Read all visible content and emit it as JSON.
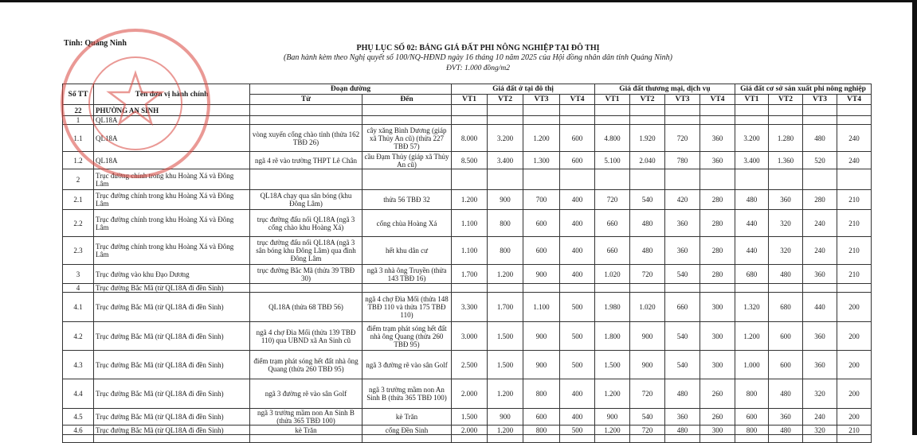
{
  "header": {
    "province": "Tỉnh: Quảng Ninh",
    "title": "PHỤ LỤC SỐ 02: BẢNG GIÁ ĐẤT PHI NÔNG NGHIỆP TẠI ĐÔ THỊ",
    "subtitle": "(Ban hành kèm theo Nghị quyết số 100/NQ-HĐND ngày 16 tháng 10 năm 2025 của Hội đồng nhân dân tỉnh Quảng Ninh)",
    "unit": "ĐVT: 1.000 đồng/m2"
  },
  "seal": {
    "text": "NHÂN DÂN TỈNH QUẢNG NINH",
    "color": "#d9463f"
  },
  "columns": {
    "stt": "Số TT",
    "name": "Tên đơn vị hành chính",
    "road": "Đoạn đường",
    "from": "Từ",
    "to": "Đến",
    "residential": "Giá đất ở tại đô thị",
    "commercial": "Giá đất thương mại, dịch vụ",
    "production": "Giá đất cơ sở sản xuất phi nông nghiệp",
    "vt": [
      "VT1",
      "VT2",
      "VT3",
      "VT4"
    ]
  },
  "rows": [
    {
      "stt": "22",
      "name": "PHƯỜNG AN SINH",
      "from": "",
      "to": "",
      "o": [
        "",
        "",
        "",
        ""
      ],
      "tm": [
        "",
        "",
        "",
        ""
      ],
      "sx": [
        "",
        "",
        "",
        ""
      ]
    },
    {
      "stt": "1",
      "name": "QL18A",
      "from": "",
      "to": "",
      "o": [
        "",
        "",
        "",
        ""
      ],
      "tm": [
        "",
        "",
        "",
        ""
      ],
      "sx": [
        "",
        "",
        "",
        ""
      ]
    },
    {
      "stt": "1.1",
      "name": "QL18A",
      "from": "vòng xuyến cổng chào tỉnh (thửa 162 TBĐ 26)",
      "to": "cây xăng Bình Dương (giáp xã Thủy An cũ) (thửa 227 TBĐ 57)",
      "o": [
        "8.000",
        "3.200",
        "1.200",
        "600"
      ],
      "tm": [
        "4.800",
        "1.920",
        "720",
        "360"
      ],
      "sx": [
        "3.200",
        "1.280",
        "480",
        "240"
      ]
    },
    {
      "stt": "1.2",
      "name": "QL18A",
      "from": "ngã 4 rẽ vào trường THPT Lê Chân",
      "to": "cầu Đạm Thủy (giáp xã Thủy An cũ)",
      "o": [
        "8.500",
        "3.400",
        "1.300",
        "600"
      ],
      "tm": [
        "5.100",
        "2.040",
        "780",
        "360"
      ],
      "sx": [
        "3.400",
        "1.360",
        "520",
        "240"
      ]
    },
    {
      "stt": "2",
      "name": "Trục đường chính trong khu Hoàng Xá và Đông Lâm",
      "from": "",
      "to": "",
      "o": [
        "",
        "",
        "",
        ""
      ],
      "tm": [
        "",
        "",
        "",
        ""
      ],
      "sx": [
        "",
        "",
        "",
        ""
      ]
    },
    {
      "stt": "2.1",
      "name": "Trục đường chính trong khu Hoàng Xá và Đông Lâm",
      "from": "QL18A chạy qua sân bóng (khu Đông Lâm)",
      "to": "thửa 56 TBĐ 32",
      "o": [
        "1.200",
        "900",
        "700",
        "400"
      ],
      "tm": [
        "720",
        "540",
        "420",
        "280"
      ],
      "sx": [
        "480",
        "360",
        "280",
        "210"
      ]
    },
    {
      "stt": "2.2",
      "name": "Trục đường chính trong khu Hoàng Xá và Đông Lâm",
      "from": "trục đường đấu nối QL18A (ngã 3 cổng chào khu Hoàng Xá)",
      "to": "cổng chùa Hoàng Xá",
      "o": [
        "1.100",
        "800",
        "600",
        "400"
      ],
      "tm": [
        "660",
        "480",
        "360",
        "280"
      ],
      "sx": [
        "440",
        "320",
        "240",
        "210"
      ]
    },
    {
      "stt": "2.3",
      "name": "Trục đường chính trong khu Hoàng Xá và Đông Lâm",
      "from": "trục đường đấu nối QL18A (ngã 3 sân bóng khu Đông Lâm) qua đình Đông Lâm",
      "to": "hết khu dân cư",
      "o": [
        "1.100",
        "800",
        "600",
        "400"
      ],
      "tm": [
        "660",
        "480",
        "360",
        "280"
      ],
      "sx": [
        "440",
        "320",
        "240",
        "210"
      ]
    },
    {
      "stt": "3",
      "name": "Trục đường vào khu Đạo Dương",
      "from": "trục đường Bắc Mã (thửa 39 TBĐ 30)",
      "to": "ngã 3 nhà ông Truyền (thửa 143 TBĐ 16)",
      "o": [
        "1.700",
        "1.200",
        "900",
        "400"
      ],
      "tm": [
        "1.020",
        "720",
        "540",
        "280"
      ],
      "sx": [
        "680",
        "480",
        "360",
        "210"
      ]
    },
    {
      "stt": "4",
      "name": "Trục đường Bắc Mã (từ QL18A đi đền Sinh)",
      "from": "",
      "to": "",
      "o": [
        "",
        "",
        "",
        ""
      ],
      "tm": [
        "",
        "",
        "",
        ""
      ],
      "sx": [
        "",
        "",
        "",
        ""
      ]
    },
    {
      "stt": "4.1",
      "name": "Trục đường Bắc Mã (từ QL18A đi đền Sinh)",
      "from": "QL18A (thửa 68 TBĐ 56)",
      "to": "ngã 4 chợ Đìa Mối (thửa 148 TBĐ 110 và thửa 175 TBĐ 110)",
      "o": [
        "3.300",
        "1.700",
        "1.100",
        "500"
      ],
      "tm": [
        "1.980",
        "1.020",
        "660",
        "300"
      ],
      "sx": [
        "1.320",
        "680",
        "440",
        "200"
      ]
    },
    {
      "stt": "4.2",
      "name": "Trục đường Bắc Mã (từ QL18A đi đền Sinh)",
      "from": "ngã 4 chợ Đìa Mối (thửa 139 TBĐ 110) qua UBND xã An Sinh cũ",
      "to": "điểm trạm phát sóng hết đất nhà ông Quang (thửa 260 TBĐ 95)",
      "o": [
        "3.000",
        "1.500",
        "900",
        "500"
      ],
      "tm": [
        "1.800",
        "900",
        "540",
        "300"
      ],
      "sx": [
        "1.200",
        "600",
        "360",
        "200"
      ]
    },
    {
      "stt": "4.3",
      "name": "Trục đường Bắc Mã (từ QL18A đi đền Sinh)",
      "from": "điểm trạm phát sóng hết đất nhà ông Quang (thửa 260 TBĐ 95)",
      "to": "ngã 3 đường rẽ vào sân Golf",
      "o": [
        "2.500",
        "1.500",
        "900",
        "500"
      ],
      "tm": [
        "1.500",
        "900",
        "540",
        "300"
      ],
      "sx": [
        "1.000",
        "600",
        "360",
        "200"
      ]
    },
    {
      "stt": "4.4",
      "name": "Trục đường Bắc Mã (từ QL18A đi đền Sinh)",
      "from": "ngã 3 đường rẽ vào sân Golf",
      "to": "ngã 3 trường mầm non An Sinh B (thửa 365 TBĐ 100)",
      "o": [
        "2.000",
        "1.200",
        "800",
        "400"
      ],
      "tm": [
        "1.200",
        "720",
        "480",
        "260"
      ],
      "sx": [
        "800",
        "480",
        "320",
        "200"
      ]
    },
    {
      "stt": "4.5",
      "name": "Trục đường Bắc Mã (từ QL18A đi đền Sinh)",
      "from": "ngã 3 trường mầm non An Sinh B (thửa 365 TBĐ 100)",
      "to": "kè Trăn",
      "o": [
        "1.500",
        "900",
        "600",
        "400"
      ],
      "tm": [
        "900",
        "540",
        "360",
        "260"
      ],
      "sx": [
        "600",
        "360",
        "240",
        "200"
      ]
    },
    {
      "stt": "4.6",
      "name": "Trục đường Bắc Mã (từ QL18A đi đền Sinh)",
      "from": "kè Trăn",
      "to": "cổng Đền Sinh",
      "o": [
        "2.000",
        "1.200",
        "800",
        "500"
      ],
      "tm": [
        "1.200",
        "720",
        "480",
        "300"
      ],
      "sx": [
        "800",
        "480",
        "320",
        "210"
      ]
    }
  ]
}
